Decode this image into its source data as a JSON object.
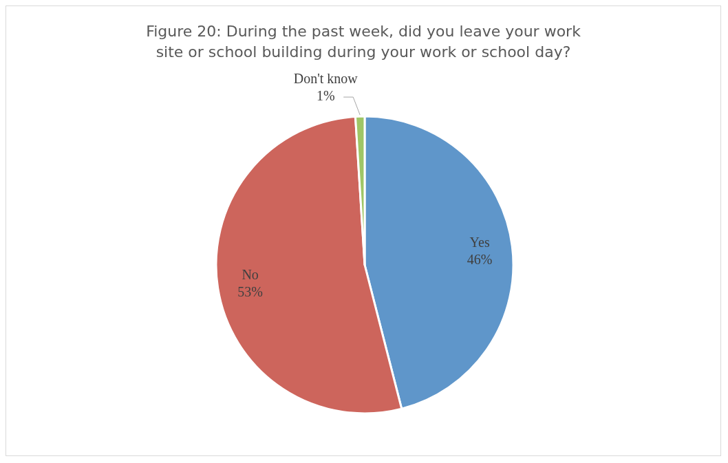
{
  "chart_data": {
    "type": "pie",
    "title": "Figure 20: During the past week, did you leave your work site or school building during your work or school day?",
    "categories": [
      "Yes",
      "No",
      "Don't know"
    ],
    "values": [
      46,
      53,
      1
    ],
    "value_labels": [
      "46%",
      "53%",
      "1%"
    ],
    "colors": [
      "#5f96ca",
      "#cd655c",
      "#9fc666"
    ],
    "legend": false
  }
}
